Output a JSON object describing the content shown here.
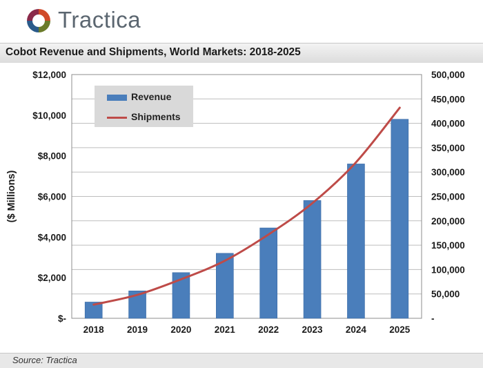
{
  "brand": {
    "name": "Tractica"
  },
  "colors": {
    "bar": "#4a7ebb",
    "bar_edge": "#3a6aa5",
    "line": "#be4b48",
    "grid": "#bdbdbd",
    "logo_top": "#d04a2a",
    "logo_right": "#6b7b2a",
    "logo_bottom": "#2a5a8a",
    "logo_left": "#8a2a4a"
  },
  "source_label": "Source: Tractica",
  "chart_data": {
    "type": "bar",
    "title": "Cobot Revenue and Shipments, World Markets: 2018-2025",
    "ylabel": "($ Millions)",
    "categories": [
      "2018",
      "2019",
      "2020",
      "2021",
      "2022",
      "2023",
      "2024",
      "2025"
    ],
    "series": [
      {
        "name": "Revenue",
        "kind": "bar",
        "axis": "left",
        "values": [
          800,
          1350,
          2250,
          3200,
          4450,
          5800,
          7600,
          9800
        ]
      },
      {
        "name": "Shipments",
        "kind": "line",
        "axis": "right",
        "values": [
          28000,
          48000,
          80000,
          118000,
          172000,
          236000,
          320000,
          432000
        ]
      }
    ],
    "ylim_left": [
      0,
      12000
    ],
    "ylim_right": [
      0,
      500000
    ],
    "yticks_left": [
      "$-",
      "$2,000",
      "$4,000",
      "$6,000",
      "$8,000",
      "$10,000",
      "$12,000"
    ],
    "yticks_right": [
      "-",
      "50,000",
      "100,000",
      "150,000",
      "200,000",
      "250,000",
      "300,000",
      "350,000",
      "400,000",
      "450,000",
      "500,000"
    ],
    "legend_position": "top-left",
    "grid": true
  }
}
